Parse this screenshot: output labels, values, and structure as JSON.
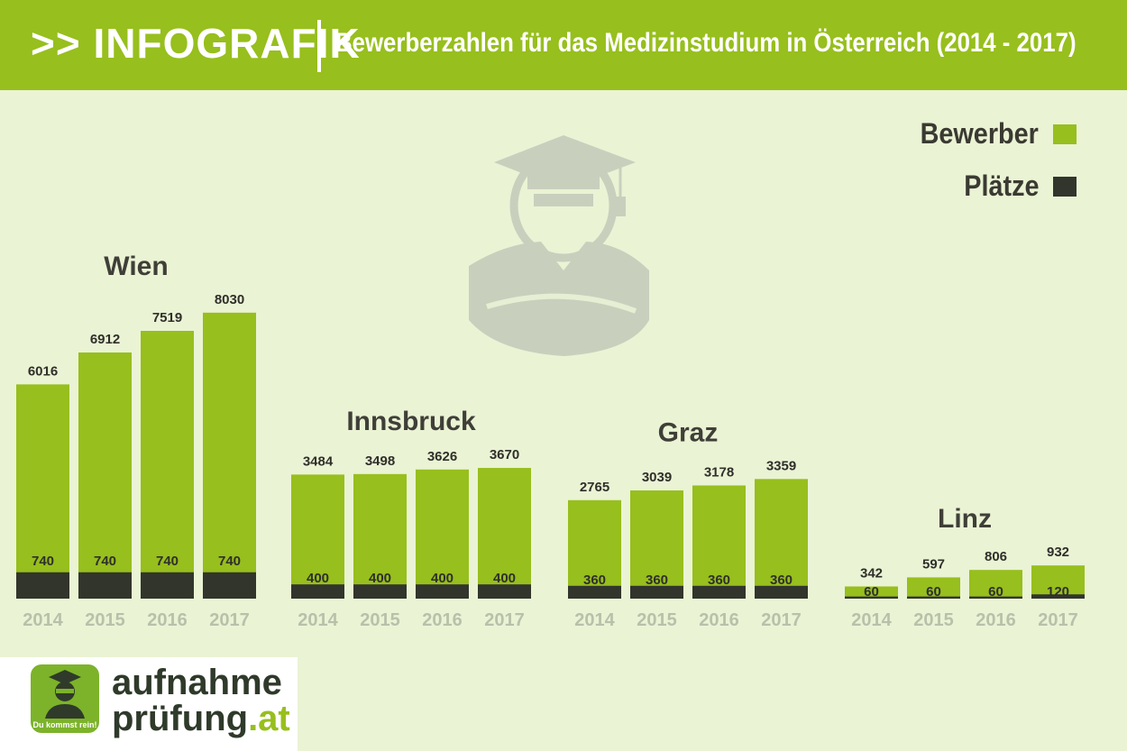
{
  "header": {
    "title_main": ">> INFOGRAFIK",
    "title_sub": "Bewerberzahlen für das Medizinstudium in Österreich (2014 - 2017)"
  },
  "legend": {
    "applicants": "Bewerber",
    "places": "Plätze"
  },
  "colors": {
    "applicants": "#97bf1d",
    "places": "#32352c",
    "header": "#97bf1d",
    "background": "#eaf3d4"
  },
  "chart_data": [
    {
      "type": "bar",
      "title": "Wien",
      "categories": [
        "2014",
        "2015",
        "2016",
        "2017"
      ],
      "series": [
        {
          "name": "Bewerber",
          "values": [
            6016,
            6912,
            7519,
            8030
          ]
        },
        {
          "name": "Plätze",
          "values": [
            740,
            740,
            740,
            740
          ]
        }
      ]
    },
    {
      "type": "bar",
      "title": "Innsbruck",
      "categories": [
        "2014",
        "2015",
        "2016",
        "2017"
      ],
      "series": [
        {
          "name": "Bewerber",
          "values": [
            3484,
            3498,
            3626,
            3670
          ]
        },
        {
          "name": "Plätze",
          "values": [
            400,
            400,
            400,
            400
          ]
        }
      ]
    },
    {
      "type": "bar",
      "title": "Graz",
      "categories": [
        "2014",
        "2015",
        "2016",
        "2017"
      ],
      "series": [
        {
          "name": "Bewerber",
          "values": [
            2765,
            3039,
            3178,
            3359
          ]
        },
        {
          "name": "Plätze",
          "values": [
            360,
            360,
            360,
            360
          ]
        }
      ]
    },
    {
      "type": "bar",
      "title": "Linz",
      "categories": [
        "2014",
        "2015",
        "2016",
        "2017"
      ],
      "series": [
        {
          "name": "Bewerber",
          "values": [
            342,
            597,
            806,
            932
          ]
        },
        {
          "name": "Plätze",
          "values": [
            60,
            60,
            60,
            120
          ]
        }
      ]
    }
  ],
  "logo": {
    "word1": "aufnahme",
    "word2": "prüfung",
    "word3": ".at",
    "tagline": "Du kommst rein!",
    "icon": "graduate-icon"
  }
}
